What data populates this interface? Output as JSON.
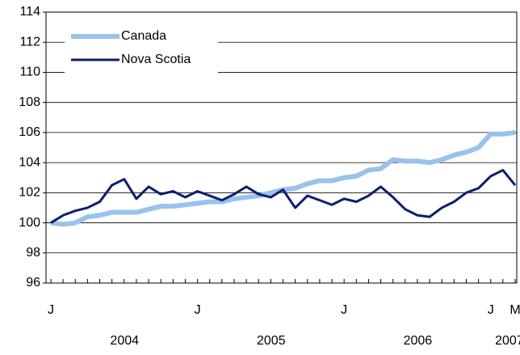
{
  "chart_data": {
    "type": "line",
    "categories": [
      "J",
      null,
      null,
      null,
      null,
      null,
      null,
      null,
      null,
      null,
      null,
      null,
      "J",
      null,
      null,
      null,
      null,
      null,
      null,
      null,
      null,
      null,
      null,
      null,
      "J",
      null,
      null,
      null,
      null,
      null,
      null,
      null,
      null,
      null,
      null,
      null,
      "J",
      null,
      "M"
    ],
    "x_groups": [
      {
        "label": "2004",
        "start": 0,
        "end": 11
      },
      {
        "label": "2005",
        "start": 12,
        "end": 23
      },
      {
        "label": "2006",
        "start": 24,
        "end": 35
      },
      {
        "label": "2007",
        "start": 36,
        "end": 38
      }
    ],
    "series": [
      {
        "name": "Canada",
        "color": "#99c2ec",
        "width": 6,
        "values": [
          100,
          99.9,
          100,
          100.4,
          100.5,
          100.7,
          100.7,
          100.7,
          100.9,
          101.1,
          101.1,
          101.2,
          101.3,
          101.4,
          101.4,
          101.6,
          101.7,
          101.8,
          102,
          102.2,
          102.3,
          102.6,
          102.8,
          102.8,
          103,
          103.1,
          103.5,
          103.6,
          104.2,
          104.1,
          104.1,
          104,
          104.2,
          104.5,
          104.7,
          105,
          105.9,
          105.9,
          106
        ]
      },
      {
        "name": "Nova Scotia",
        "color": "#0b1f6e",
        "width": 3,
        "values": [
          100,
          100.5,
          100.8,
          101,
          101.4,
          102.5,
          102.9,
          101.6,
          102.4,
          101.9,
          102.1,
          101.7,
          102.1,
          101.8,
          101.5,
          101.9,
          102.4,
          101.9,
          101.7,
          102.2,
          101,
          101.8,
          101.5,
          101.2,
          101.6,
          101.4,
          101.8,
          102.4,
          101.7,
          100.9,
          100.5,
          100.4,
          101,
          101.4,
          102,
          102.3,
          103.1,
          103.5,
          102.5
        ]
      }
    ],
    "ylim": [
      96,
      114
    ],
    "yticks": [
      96,
      98,
      100,
      102,
      104,
      106,
      108,
      110,
      112,
      114
    ],
    "grid": true,
    "legend": "top-left"
  }
}
